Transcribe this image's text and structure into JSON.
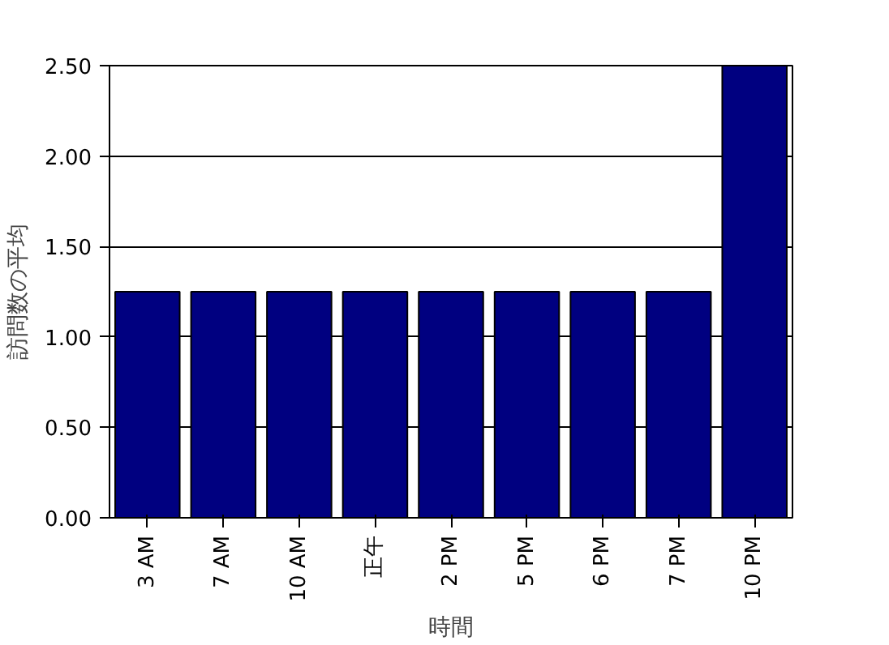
{
  "chart_data": {
    "type": "bar",
    "xlabel": "時間",
    "ylabel": "訪問数の平均",
    "categories": [
      "3 AM",
      "7 AM",
      "10 AM",
      "正午",
      "2 PM",
      "5 PM",
      "6 PM",
      "7 PM",
      "10 PM"
    ],
    "values": [
      1.25,
      1.25,
      1.25,
      1.25,
      1.25,
      1.25,
      1.25,
      1.25,
      2.5
    ],
    "color": "#000080",
    "ylim": [
      0,
      2.5
    ],
    "yticks": [
      {
        "value": 0,
        "label": "0.00"
      },
      {
        "value": 0.5,
        "label": "0.50"
      },
      {
        "value": 1,
        "label": "1.00"
      },
      {
        "value": 1.5,
        "label": "1.50"
      },
      {
        "value": 2,
        "label": "2.00"
      },
      {
        "value": 2.5,
        "label": "2.50"
      }
    ],
    "grid": "y"
  }
}
